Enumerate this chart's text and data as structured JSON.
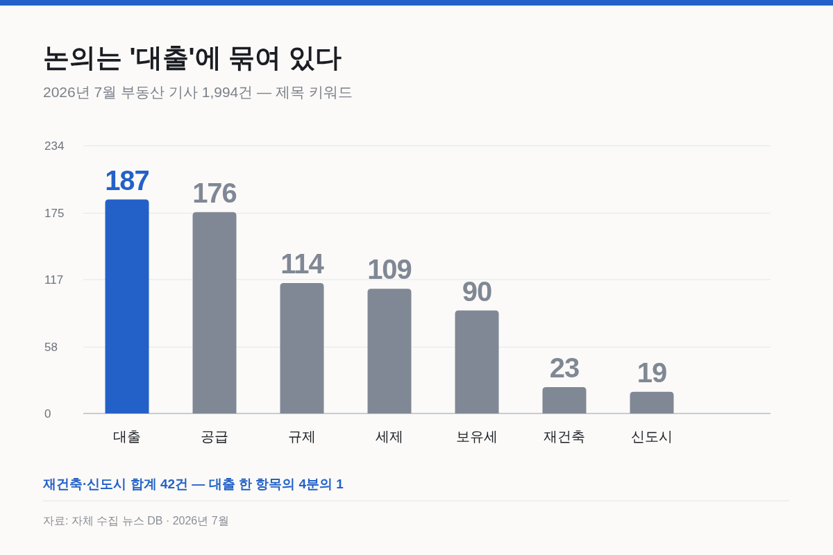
{
  "chart_data": {
    "type": "bar",
    "title": "논의는 '대출'에 묶여 있다",
    "subtitle": "2026년 7월 부동산 기사 1,994건 — 제목 키워드",
    "categories": [
      "대출",
      "공급",
      "규제",
      "세제",
      "보유세",
      "재건축",
      "신도시"
    ],
    "values": [
      187,
      176,
      114,
      109,
      90,
      23,
      19
    ],
    "colors": [
      "#2361c8",
      "#808895",
      "#808895",
      "#808895",
      "#808895",
      "#808895",
      "#808895"
    ],
    "ylim": [
      0,
      234
    ],
    "yticks": [
      0,
      58,
      117,
      175,
      234
    ],
    "grid": "y",
    "data_labels": true,
    "annotations": [
      "재건축·신도시 합계 42건 — 대출 한 항목의 4분의 1",
      "자료: 자체 수집 뉴스 DB · 2026년 7월"
    ]
  }
}
